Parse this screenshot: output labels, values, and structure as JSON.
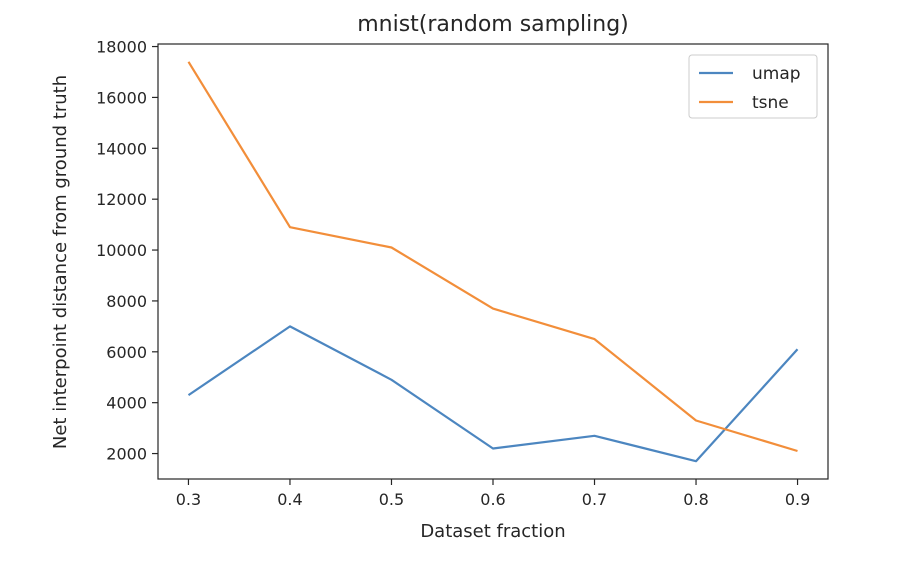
{
  "chart_data": {
    "type": "line",
    "title": "mnist(random sampling)",
    "xlabel": "Dataset fraction",
    "ylabel": "Net interpoint distance from ground truth",
    "x": [
      0.3,
      0.4,
      0.5,
      0.6,
      0.7,
      0.8,
      0.9
    ],
    "x_tick_labels": [
      "0.3",
      "0.4",
      "0.5",
      "0.6",
      "0.7",
      "0.8",
      "0.9"
    ],
    "y_ticks": [
      2000,
      4000,
      6000,
      8000,
      10000,
      12000,
      14000,
      16000,
      18000
    ],
    "y_tick_labels": [
      "2000",
      "4000",
      "6000",
      "8000",
      "10000",
      "12000",
      "14000",
      "16000",
      "18000"
    ],
    "xlim": [
      0.27,
      0.93
    ],
    "ylim": [
      1000,
      18100
    ],
    "grid": false,
    "legend_position": "top-right",
    "series": [
      {
        "name": "umap",
        "color": "#4c86c0",
        "values": [
          4300,
          7000,
          4900,
          2200,
          2700,
          1700,
          6100
        ]
      },
      {
        "name": "tsne",
        "color": "#f28e3a",
        "values": [
          17400,
          10900,
          10100,
          7700,
          6500,
          3300,
          2100
        ]
      }
    ]
  }
}
